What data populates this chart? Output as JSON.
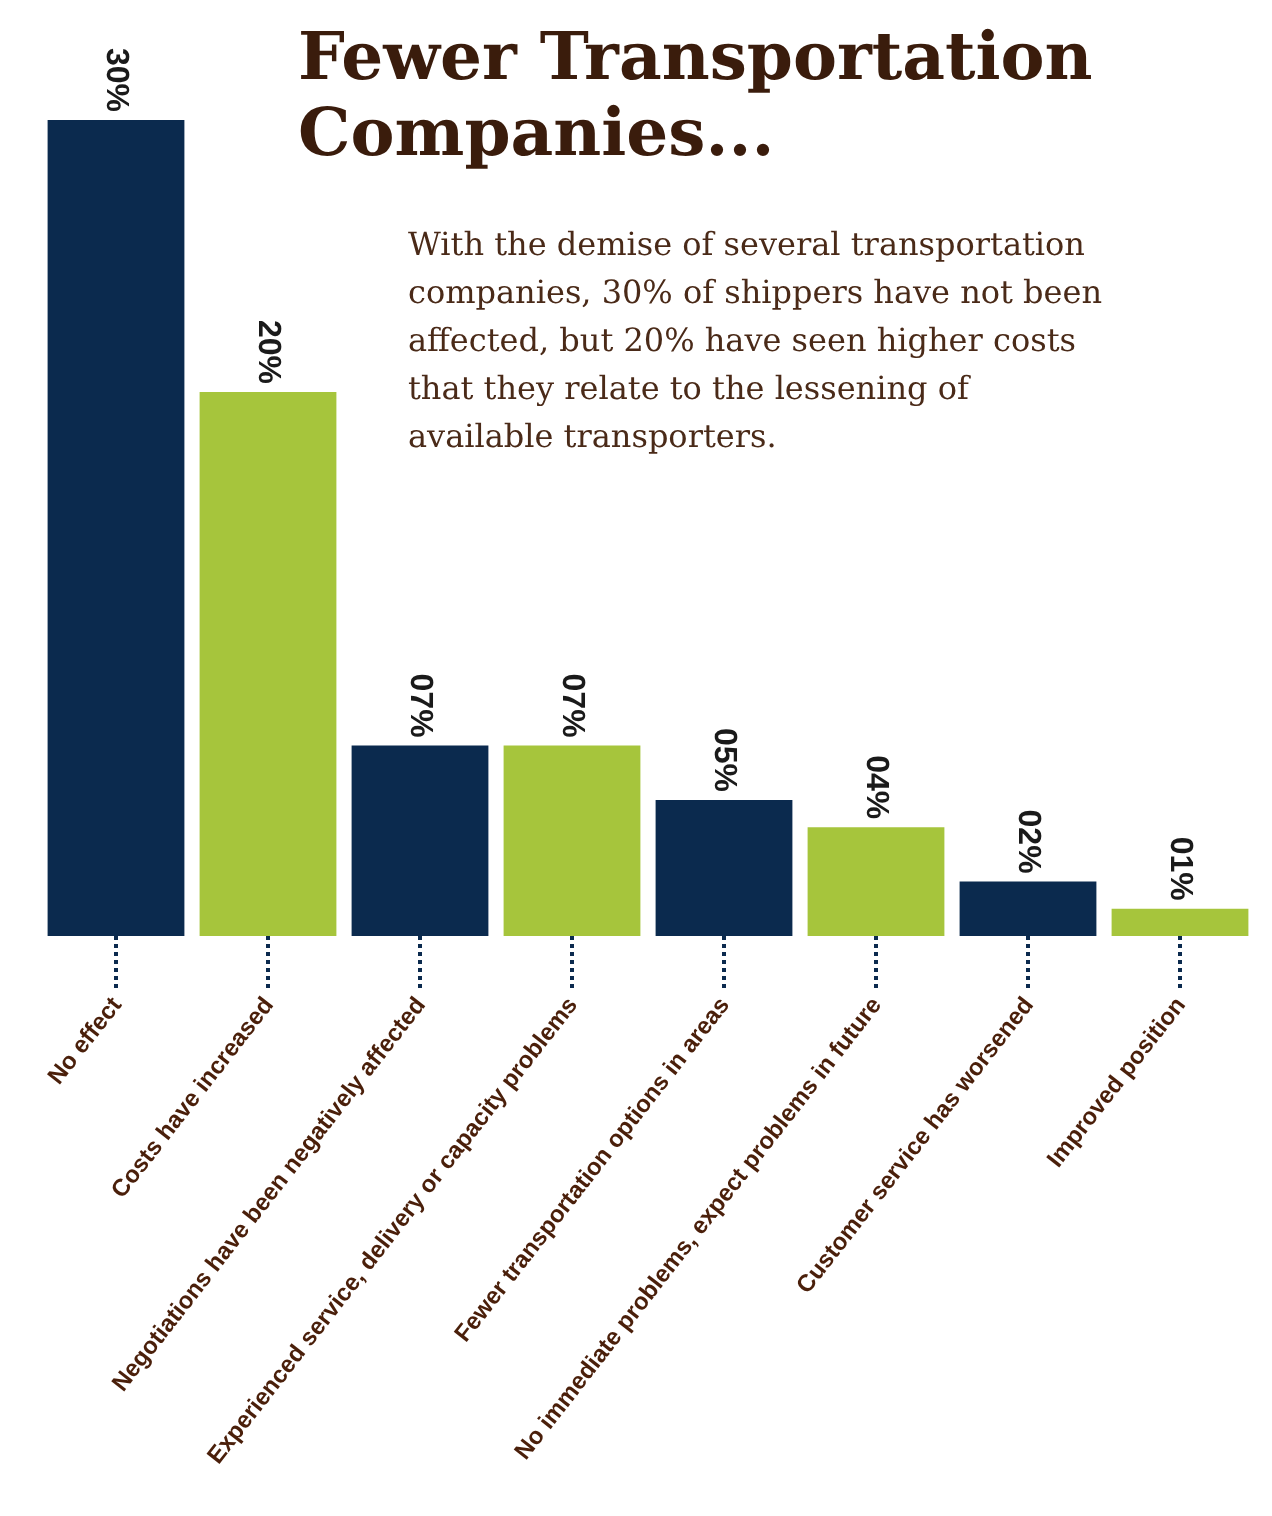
{
  "chart_data": {
    "type": "bar",
    "title": "Fewer Transportation Companies...",
    "subtitle": "With the demise of several transportation companies, 30% of shippers have not been affected, but 20% have seen higher costs that they relate to the lessening of available transporters.",
    "categories": [
      "No effect",
      "Costs have increased",
      "Negotiations have been negatively affected",
      "Experienced service, delivery or capacity problems",
      "Fewer transportation options in areas",
      "No immediate problems, expect problems in future",
      "Customer service has worsened",
      "Improved position"
    ],
    "values": [
      30,
      20,
      7,
      7,
      5,
      4,
      2,
      1
    ],
    "value_labels": [
      "30%",
      "20%",
      "07%",
      "07%",
      "05%",
      "04%",
      "02%",
      "01%"
    ],
    "colors": [
      "#0b2a4e",
      "#a6c53c",
      "#0b2a4e",
      "#a6c53c",
      "#0b2a4e",
      "#a6c53c",
      "#0b2a4e",
      "#a6c53c"
    ]
  }
}
